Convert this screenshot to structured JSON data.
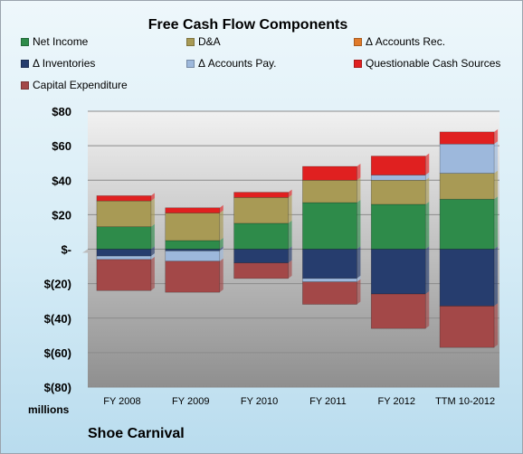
{
  "chart_data": {
    "type": "bar",
    "stacked": true,
    "title": "Free Cash Flow Components",
    "y_unit_label": "millions",
    "company": "Shoe Carnival",
    "categories": [
      "FY 2008",
      "FY 2009",
      "FY 2010",
      "FY 2011",
      "FY 2012",
      "TTM 10-2012"
    ],
    "ylim": [
      -80,
      80
    ],
    "yticks": [
      80,
      60,
      40,
      20,
      0,
      -20,
      -40,
      -60,
      -80
    ],
    "ytick_labels": [
      "$80",
      "$60",
      "$40",
      "$20",
      "$-",
      "$(20)",
      "$(40)",
      "$(60)",
      "$(80)"
    ],
    "grid": true,
    "legend_position": "top",
    "series": [
      {
        "name": "Net Income",
        "color": "#2e8b4a",
        "values": [
          13,
          5,
          15,
          27,
          26,
          29
        ]
      },
      {
        "name": "D&A",
        "color": "#a89a55",
        "values": [
          15,
          16,
          15,
          13,
          14,
          15
        ]
      },
      {
        "name": "Δ Accounts Rec.",
        "color": "#e07a2a",
        "values": [
          0,
          0,
          0,
          0,
          0,
          0
        ]
      },
      {
        "name": "Δ Inventories",
        "color": "#263d6e",
        "values": [
          -4,
          -1,
          -8,
          -17,
          -26,
          -33
        ]
      },
      {
        "name": "Δ Accounts Pay.",
        "color": "#9db8dc",
        "values": [
          -2,
          -6,
          0,
          -2,
          3,
          17
        ]
      },
      {
        "name": "Questionable Cash Sources",
        "color": "#e02020",
        "values": [
          3,
          3,
          3,
          8,
          11,
          7
        ]
      },
      {
        "name": "Capital Expenditure",
        "color": "#a34848",
        "values": [
          -18,
          -18,
          -9,
          -13,
          -20,
          -24
        ]
      }
    ]
  }
}
